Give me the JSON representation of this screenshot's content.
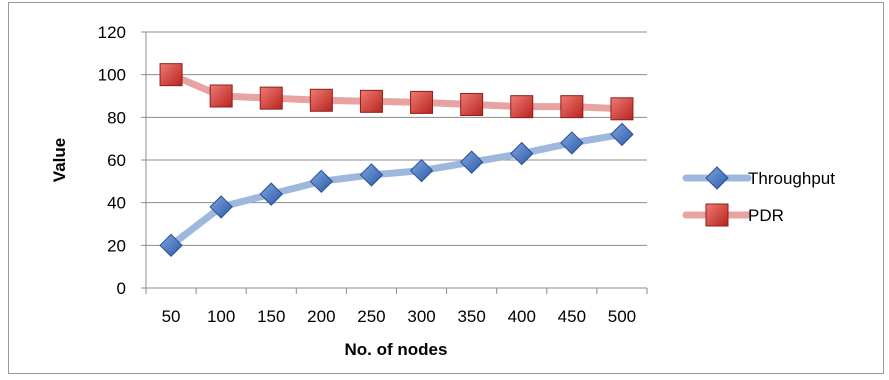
{
  "chart_data": {
    "type": "line",
    "title": "",
    "xlabel": "No. of nodes",
    "ylabel": "Value",
    "categories": [
      "50",
      "100",
      "150",
      "200",
      "250",
      "300",
      "350",
      "400",
      "450",
      "500"
    ],
    "ylim": [
      0,
      120
    ],
    "yticks": [
      0,
      20,
      40,
      60,
      80,
      100,
      120
    ],
    "grid": true,
    "legend_position": "right",
    "series": [
      {
        "name": "Throughput",
        "values": [
          20,
          38,
          44,
          50,
          53,
          55,
          59,
          63,
          68,
          72
        ],
        "line_color": "#9db8dc",
        "marker_color": "#3f6fbf",
        "marker": "diamond"
      },
      {
        "name": "PDR",
        "values": [
          100,
          90,
          89,
          88,
          87.5,
          87,
          86,
          85,
          85,
          84
        ],
        "line_color": "#e6a3a1",
        "marker_color": "#cc3a33",
        "marker": "square"
      }
    ]
  }
}
